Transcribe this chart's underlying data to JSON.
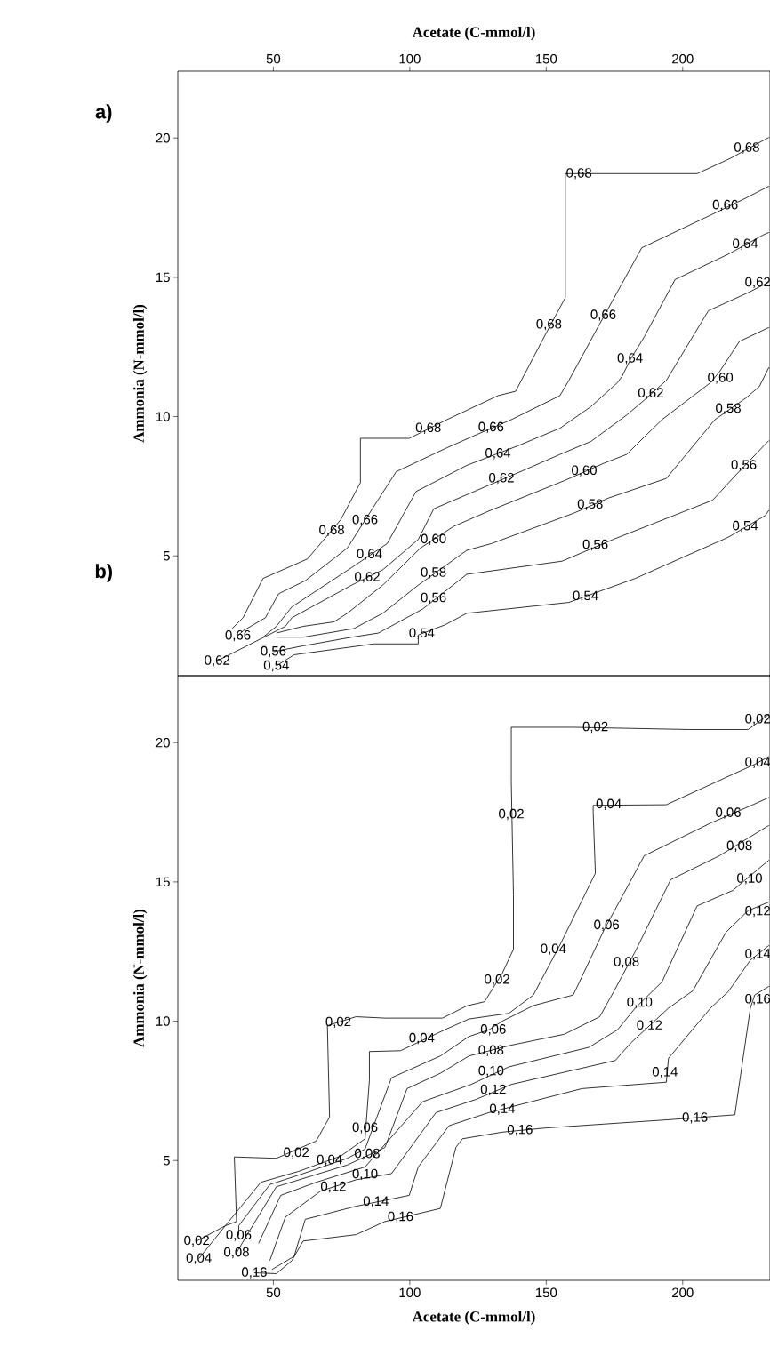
{
  "chart_data": [
    {
      "type": "line",
      "xlabel": "Acetate (C-mmol/l)",
      "ylabel": "Ammonia (N-mmol/l)",
      "xlim": [
        15,
        232
      ],
      "xticks": [
        50,
        100,
        150,
        200
      ],
      "ylim": [
        0.7,
        22.4
      ],
      "yticks": [
        5,
        10,
        15,
        20
      ],
      "series": [
        {
          "color": "#000000",
          "x": [
            34.9,
            38.9,
            46.2,
            62.5,
            74.7,
            81.9,
            81.9,
            99.8,
            113.6,
            132.3,
            138.8,
            150.1,
            157.0,
            157.0,
            205.3,
            217.5,
            231.6
          ],
          "values": [
            2.39,
            2.78,
            4.19,
            4.89,
            6.3,
            7.63,
            9.22,
            9.22,
            9.89,
            10.75,
            10.91,
            13.02,
            14.27,
            18.72,
            18.72,
            19.27,
            20.02
          ]
        },
        {
          "color": "#000000",
          "x": [
            37.0,
            38.9,
            47.1,
            51.9,
            61.7,
            77.1,
            86.8,
            95.0,
            113.6,
            124.2,
            137.2,
            155.0,
            158.3,
            169.6,
            185.0,
            210.2,
            222.9,
            231.6
          ],
          "values": [
            2.13,
            2.31,
            2.78,
            3.64,
            4.11,
            5.28,
            6.77,
            8.02,
            8.88,
            9.34,
            9.89,
            10.75,
            11.3,
            13.33,
            16.06,
            17.23,
            17.83,
            18.27
          ]
        },
        {
          "color": "#000000",
          "x": [
            46.2,
            51.1,
            56.8,
            64.1,
            78.7,
            91.7,
            102.3,
            120.9,
            139.6,
            155.0,
            166.4,
            176.1,
            177.8,
            181.0,
            185.9,
            197.2,
            216.7,
            229.7,
            231.6
          ],
          "values": [
            2.08,
            2.47,
            3.17,
            3.64,
            4.58,
            5.44,
            7.31,
            8.25,
            8.95,
            9.58,
            10.36,
            11.22,
            11.45,
            12.08,
            12.86,
            14.92,
            15.83,
            16.53,
            16.61
          ]
        },
        {
          "color": "#000000",
          "x": [
            29.4,
            54.4,
            56.8,
            64.1,
            78.7,
            90.1,
            103.1,
            108.8,
            127.4,
            141.2,
            155.0,
            166.4,
            179.4,
            185.9,
            194.0,
            209.4,
            224.0,
            231.6
          ],
          "values": [
            1.23,
            2.47,
            2.78,
            3.17,
            3.95,
            4.5,
            5.59,
            6.69,
            7.47,
            8.05,
            8.64,
            9.11,
            10.05,
            10.59,
            11.3,
            13.8,
            14.45,
            14.83
          ]
        },
        {
          "color": "#000000",
          "x": [
            51.1,
            60.9,
            72.2,
            77.1,
            90.1,
            103.9,
            116.1,
            129.0,
            156.6,
            171.2,
            179.4,
            192.4,
            210.2,
            213.5,
            220.8,
            231.6
          ],
          "values": [
            2.23,
            2.47,
            2.63,
            2.94,
            3.95,
            5.28,
            6.06,
            6.61,
            7.7,
            8.33,
            8.64,
            9.89,
            11.22,
            11.61,
            12.7,
            13.2
          ]
        },
        {
          "color": "#000000",
          "x": [
            51.1,
            60.9,
            79.5,
            90.1,
            103.1,
            120.9,
            129.9,
            160.0,
            172.9,
            194.0,
            211.8,
            223.2,
            228.1,
            231.6
          ],
          "values": [
            2.08,
            2.08,
            2.39,
            2.94,
            3.95,
            5.2,
            5.44,
            6.53,
            7.08,
            7.78,
            9.89,
            10.67,
            11.08,
            11.77
          ]
        },
        {
          "color": "#000000",
          "x": [
            50.0,
            60.9,
            78.7,
            88.5,
            104.7,
            120.9,
            155.8,
            174.5,
            211.0,
            218.3,
            229.7,
            231.6
          ],
          "values": [
            1.56,
            1.77,
            2.08,
            2.23,
            3.09,
            4.34,
            4.81,
            5.59,
            7.0,
            7.78,
            8.95,
            9.14
          ]
        },
        {
          "color": "#000000",
          "x": [
            51.1,
            57.6,
            86.8,
            103.1,
            103.1,
            112.8,
            120.9,
            158.3,
            182.6,
            216.7,
            230.3,
            231.6
          ],
          "values": [
            1.05,
            1.45,
            1.84,
            1.84,
            2.16,
            2.52,
            2.94,
            3.33,
            4.19,
            5.67,
            6.45,
            6.64
          ]
        }
      ],
      "annotations": [
        "a)",
        {
          "text": "0,68",
          "x": 71.4,
          "y": 5.91
        },
        {
          "text": "0,68",
          "x": 106.8,
          "y": 9.58
        },
        {
          "text": "0,68",
          "x": 151.0,
          "y": 13.3
        },
        {
          "text": "0,68",
          "x": 162.0,
          "y": 18.72
        },
        {
          "text": "0,68",
          "x": 223.5,
          "y": 19.64
        },
        {
          "text": "0,66",
          "x": 83.6,
          "y": 6.28
        },
        {
          "text": "0,66",
          "x": 129.8,
          "y": 9.61
        },
        {
          "text": "0,66",
          "x": 170.9,
          "y": 13.64
        },
        {
          "text": "0,66",
          "x": 215.6,
          "y": 17.58
        },
        {
          "text": "0,66",
          "x": 37.0,
          "y": 2.13
        },
        {
          "text": "0,64",
          "x": 85.2,
          "y": 5.05
        },
        {
          "text": "0,64",
          "x": 132.3,
          "y": 8.67
        },
        {
          "text": "0,64",
          "x": 180.7,
          "y": 12.08
        },
        {
          "text": "0,64",
          "x": 222.9,
          "y": 16.19
        },
        {
          "text": "0,62",
          "x": 84.4,
          "y": 4.23
        },
        {
          "text": "0,62",
          "x": 133.6,
          "y": 7.78
        },
        {
          "text": "0,62",
          "x": 188.3,
          "y": 10.83
        },
        {
          "text": "0,62",
          "x": 227.5,
          "y": 14.81
        },
        {
          "text": "0,62",
          "x": 29.4,
          "y": 1.23
        },
        {
          "text": "0,60",
          "x": 108.7,
          "y": 5.59
        },
        {
          "text": "0,60",
          "x": 163.9,
          "y": 8.05
        },
        {
          "text": "0,60",
          "x": 213.8,
          "y": 11.38
        },
        {
          "text": "0,58",
          "x": 108.7,
          "y": 4.39
        },
        {
          "text": "0,58",
          "x": 166.1,
          "y": 6.84
        },
        {
          "text": "0,58",
          "x": 216.7,
          "y": 10.28
        },
        {
          "text": "0,56",
          "x": 108.7,
          "y": 3.48
        },
        {
          "text": "0,56",
          "x": 168.0,
          "y": 5.39
        },
        {
          "text": "0,56",
          "x": 222.4,
          "y": 8.25
        },
        {
          "text": "0,56",
          "x": 50.0,
          "y": 1.56
        },
        {
          "text": "0,54",
          "x": 104.4,
          "y": 2.21
        },
        {
          "text": "0,54",
          "x": 164.4,
          "y": 3.55
        },
        {
          "text": "0,54",
          "x": 222.9,
          "y": 6.06
        },
        {
          "text": "0,54",
          "x": 51.1,
          "y": 1.05
        }
      ]
    },
    {
      "type": "line",
      "xlabel": "Acetate (C-mmol/l)",
      "ylabel": "Ammonia (N-mmol/l)",
      "xlim": [
        15,
        232
      ],
      "xticks": [
        50,
        100,
        150,
        200
      ],
      "ylim": [
        0.7,
        22.4
      ],
      "yticks": [
        5,
        10,
        15,
        20
      ],
      "series": [
        {
          "color": "#000000",
          "x": [
            21.9,
            32.4,
            36.5,
            35.7,
            51.1,
            65.7,
            70.6,
            69.8,
            80.3,
            90.9,
            112.0,
            120.9,
            127.4,
            133.9,
            138.0,
            138.0,
            137.2,
            137.2,
            159.9,
            202.1,
            224.0,
            231.6
          ],
          "values": [
            2.11,
            2.66,
            2.81,
            5.13,
            5.08,
            5.7,
            6.56,
            9.84,
            10.16,
            10.11,
            10.11,
            10.55,
            10.7,
            11.72,
            12.58,
            14.53,
            18.59,
            20.55,
            20.55,
            20.47,
            20.47,
            21.02
          ]
        },
        {
          "color": "#000000",
          "x": [
            22.7,
            32.4,
            45.4,
            59.2,
            74.7,
            83.6,
            85.2,
            85.2,
            96.6,
            112.8,
            121.7,
            136.3,
            145.3,
            155.0,
            168.0,
            167.2,
            167.2,
            194.0,
            226.4,
            231.6
          ],
          "values": [
            1.48,
            2.66,
            4.22,
            4.61,
            5.16,
            5.78,
            7.89,
            8.91,
            8.94,
            9.69,
            10.08,
            10.28,
            10.94,
            12.73,
            15.31,
            17.5,
            17.75,
            17.77,
            19.22,
            19.5
          ]
        },
        {
          "color": "#000000",
          "x": [
            37.3,
            37.3,
            48.7,
            60.9,
            77.1,
            83.6,
            93.3,
            111.2,
            121.7,
            129.0,
            133.9,
            145.3,
            159.9,
            171.2,
            185.9,
            210.2,
            224.8,
            231.6
          ],
          "values": [
            2.31,
            2.66,
            4.14,
            4.53,
            5.08,
            5.41,
            7.97,
            8.75,
            9.45,
            9.69,
            10.0,
            10.56,
            10.94,
            13.28,
            15.94,
            17.11,
            17.73,
            18.03
          ]
        },
        {
          "color": "#000000",
          "x": [
            36.5,
            41.4,
            51.1,
            64.1,
            77.1,
            90.9,
            99.0,
            111.2,
            121.7,
            137.2,
            156.6,
            169.6,
            174.5,
            182.6,
            195.6,
            213.5,
            231.6
          ],
          "values": [
            1.69,
            2.5,
            4.06,
            4.45,
            4.84,
            5.47,
            7.58,
            8.13,
            8.75,
            9.14,
            9.53,
            10.16,
            11.02,
            12.5,
            15.08,
            15.94,
            17.03
          ]
        },
        {
          "color": "#000000",
          "x": [
            44.6,
            52.7,
            65.7,
            83.6,
            104.7,
            122.5,
            136.3,
            165.6,
            176.1,
            182.6,
            192.4,
            205.3,
            218.3,
            231.6
          ],
          "values": [
            2.03,
            3.75,
            4.22,
            4.77,
            7.11,
            7.73,
            8.36,
            9.06,
            9.69,
            10.47,
            11.41,
            14.14,
            14.69,
            15.78
          ]
        },
        {
          "color": "#000000",
          "x": [
            48.7,
            54.4,
            67.4,
            80.3,
            93.3,
            109.6,
            124.2,
            137.2,
            175.3,
            181.0,
            194.8,
            203.7,
            215.9,
            224.0,
            231.6
          ],
          "values": [
            1.41,
            2.97,
            3.91,
            4.31,
            4.53,
            6.72,
            7.19,
            7.73,
            8.59,
            9.22,
            10.47,
            11.09,
            13.2,
            13.97,
            14.28
          ]
        },
        {
          "color": "#000000",
          "x": [
            49.5,
            57.6,
            61.7,
            80.3,
            99.8,
            103.1,
            114.4,
            129.0,
            163.1,
            194.0,
            194.8,
            210.2,
            216.7,
            224.8,
            231.6
          ],
          "values": [
            1.09,
            1.56,
            2.89,
            3.36,
            3.75,
            4.77,
            6.25,
            6.72,
            7.58,
            7.81,
            8.67,
            10.47,
            11.06,
            12.19,
            12.72
          ]
        },
        {
          "color": "#000000",
          "x": [
            43.0,
            51.1,
            56.8,
            60.9,
            80.3,
            90.9,
            111.2,
            116.9,
            119.3,
            133.9,
            150.1,
            197.2,
            219.1,
            224.8,
            226.4,
            231.6
          ],
          "values": [
            0.97,
            0.94,
            1.41,
            2.11,
            2.34,
            2.81,
            3.28,
            5.47,
            5.78,
            6.02,
            6.17,
            6.48,
            6.64,
            10.47,
            10.94,
            11.25
          ]
        }
      ],
      "annotations": [
        "b)",
        {
          "text": "0,02",
          "x": 168.0,
          "y": 20.55
        },
        {
          "text": "0,02",
          "x": 227.5,
          "y": 20.83
        },
        {
          "text": "0,02",
          "x": 137.2,
          "y": 17.42
        },
        {
          "text": "0,02",
          "x": 132.0,
          "y": 11.48
        },
        {
          "text": "0,02",
          "x": 73.8,
          "y": 9.96
        },
        {
          "text": "0,02",
          "x": 58.4,
          "y": 5.27
        },
        {
          "text": "0,02",
          "x": 21.9,
          "y": 2.11
        },
        {
          "text": "0,04",
          "x": 70.6,
          "y": 5.01
        },
        {
          "text": "0,04",
          "x": 104.4,
          "y": 9.38
        },
        {
          "text": "0,04",
          "x": 152.6,
          "y": 12.58
        },
        {
          "text": "0,04",
          "x": 172.9,
          "y": 17.78
        },
        {
          "text": "0,04",
          "x": 227.5,
          "y": 19.28
        },
        {
          "text": "0,04",
          "x": 22.7,
          "y": 1.48
        },
        {
          "text": "0,06",
          "x": 83.6,
          "y": 6.17
        },
        {
          "text": "0,06",
          "x": 130.6,
          "y": 9.69
        },
        {
          "text": "0,06",
          "x": 172.1,
          "y": 13.44
        },
        {
          "text": "0,06",
          "x": 216.7,
          "y": 17.47
        },
        {
          "text": "0,06",
          "x": 37.3,
          "y": 2.31
        },
        {
          "text": "0,08",
          "x": 84.4,
          "y": 5.23
        },
        {
          "text": "0,08",
          "x": 129.8,
          "y": 8.94
        },
        {
          "text": "0,08",
          "x": 179.4,
          "y": 12.11
        },
        {
          "text": "0,08",
          "x": 220.8,
          "y": 16.28
        },
        {
          "text": "0,08",
          "x": 36.5,
          "y": 1.69
        },
        {
          "text": "0,10",
          "x": 83.6,
          "y": 4.5
        },
        {
          "text": "0,10",
          "x": 129.8,
          "y": 8.2
        },
        {
          "text": "0,10",
          "x": 184.2,
          "y": 10.66
        },
        {
          "text": "0,10",
          "x": 224.5,
          "y": 15.11
        },
        {
          "text": "0,12",
          "x": 72.0,
          "y": 4.05
        },
        {
          "text": "0,12",
          "x": 130.6,
          "y": 7.53
        },
        {
          "text": "0,12",
          "x": 187.8,
          "y": 9.84
        },
        {
          "text": "0,12",
          "x": 227.5,
          "y": 13.94
        },
        {
          "text": "0,14",
          "x": 87.6,
          "y": 3.52
        },
        {
          "text": "0,14",
          "x": 133.9,
          "y": 6.84
        },
        {
          "text": "0,14",
          "x": 193.5,
          "y": 8.16
        },
        {
          "text": "0,14",
          "x": 227.5,
          "y": 12.4
        },
        {
          "text": "0,16",
          "x": 96.6,
          "y": 2.97
        },
        {
          "text": "0,16",
          "x": 140.4,
          "y": 6.09
        },
        {
          "text": "0,16",
          "x": 204.5,
          "y": 6.53
        },
        {
          "text": "0,16",
          "x": 227.5,
          "y": 10.78
        },
        {
          "text": "0,16",
          "x": 43.0,
          "y": 0.97
        }
      ]
    }
  ]
}
